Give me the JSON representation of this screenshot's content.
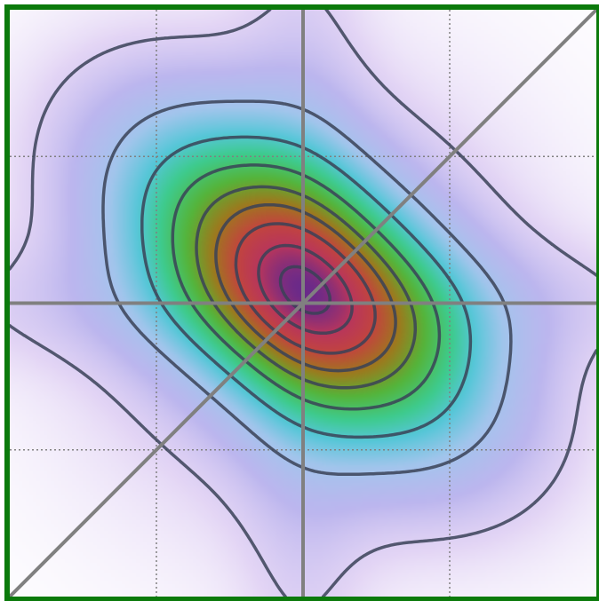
{
  "chart_data": {
    "type": "contour",
    "title": "",
    "xlabel": "",
    "ylabel": "",
    "xlim": [
      -1,
      1
    ],
    "ylim": [
      -1,
      1
    ],
    "grid": true,
    "grid_lines": [
      -0.5,
      0.5
    ],
    "reference_lines": [
      {
        "kind": "vertical",
        "x": 0
      },
      {
        "kind": "horizontal",
        "y": 0
      },
      {
        "kind": "diagonal",
        "from": [
          -1,
          -1
        ],
        "to": [
          1,
          1
        ]
      }
    ],
    "field": {
      "description_terms": [
        {
          "amp": 1.0,
          "cx": 0.0,
          "cy": 0.06,
          "sx": 0.25,
          "sy": 0.45,
          "rot_deg": 50
        },
        {
          "amp": 0.13,
          "cx": 0.0,
          "cy": 0.0,
          "sx": 0.55,
          "sy": 0.55,
          "rot_deg": 0
        },
        {
          "amp": 0.07,
          "cx": 0.0,
          "cy": 0.0,
          "sx": 0.15,
          "sy": 1.4,
          "rot_deg": 0
        },
        {
          "amp": 0.07,
          "cx": 0.0,
          "cy": 0.0,
          "sx": 1.4,
          "sy": 0.15,
          "rot_deg": 0
        }
      ],
      "contour_levels": [
        0.06,
        0.2,
        0.34,
        0.48,
        0.6,
        0.7,
        0.8,
        0.9,
        0.97
      ],
      "colormap": [
        {
          "v": 0.0,
          "color": "#ffffff"
        },
        {
          "v": 0.05,
          "color": "#e3d5f5"
        },
        {
          "v": 0.12,
          "color": "#bcb6ee"
        },
        {
          "v": 0.22,
          "color": "#a2c5ec"
        },
        {
          "v": 0.32,
          "color": "#56c6d8"
        },
        {
          "v": 0.42,
          "color": "#3ecb8e"
        },
        {
          "v": 0.55,
          "color": "#55b43a"
        },
        {
          "v": 0.68,
          "color": "#9c7a1e"
        },
        {
          "v": 0.8,
          "color": "#c2453e"
        },
        {
          "v": 0.9,
          "color": "#b8365c"
        },
        {
          "v": 1.0,
          "color": "#6a2a8a"
        }
      ]
    }
  },
  "colors": {
    "frame": "#0b7a0b",
    "contour": "#3a4257",
    "reference_line": "#808080",
    "grid": "#808080"
  }
}
